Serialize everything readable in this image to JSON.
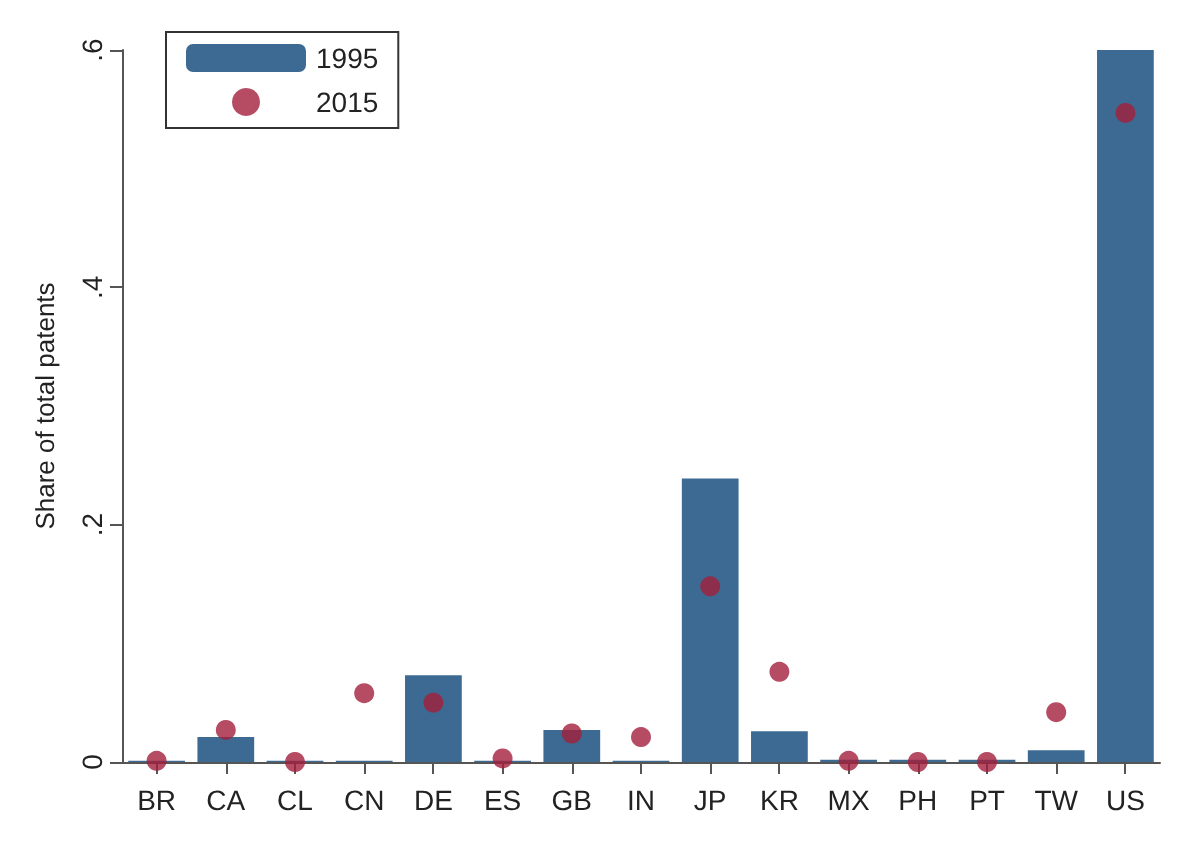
{
  "chart_data": {
    "type": "bar",
    "ylabel": "Share of total patents",
    "categories": [
      "BR",
      "CA",
      "CL",
      "CN",
      "DE",
      "ES",
      "GB",
      "IN",
      "JP",
      "KR",
      "MX",
      "PH",
      "PT",
      "TW",
      "US"
    ],
    "series": [
      {
        "name": "1995",
        "color": "#3d6a93",
        "values": [
          0.001,
          0.021,
          0.001,
          0.001,
          0.073,
          0.001,
          0.027,
          0.001,
          0.239,
          0.026,
          0.002,
          0.002,
          0.002,
          0.01,
          0.6
        ]
      },
      {
        "name": "2015",
        "type": "scatter",
        "color": "#a31f3c",
        "values": [
          0.001,
          0.027,
          0,
          0.058,
          0.05,
          0.003,
          0.024,
          0.021,
          0.148,
          0.076,
          0.001,
          0,
          0,
          0.042,
          0.547
        ]
      }
    ],
    "ylim": [
      0,
      0.6
    ],
    "yticks": [
      {
        "value": 0,
        "label": "0"
      },
      {
        "value": 0.2,
        "label": ".2"
      },
      {
        "value": 0.4,
        "label": ".4"
      },
      {
        "value": 0.6,
        "label": ".6"
      }
    ],
    "grid": false,
    "legend": "top left",
    "marker": "circle"
  }
}
